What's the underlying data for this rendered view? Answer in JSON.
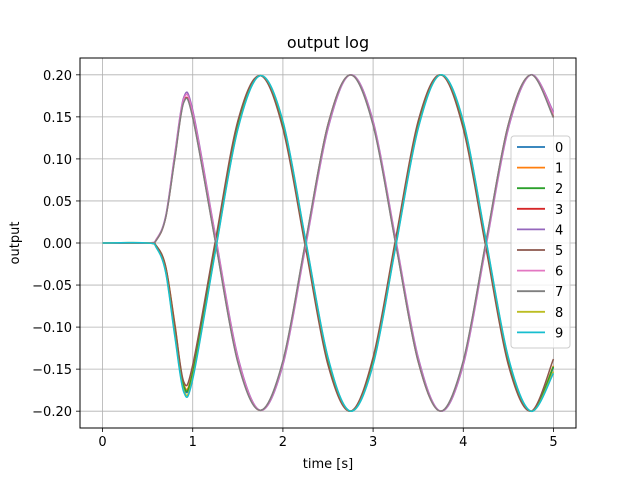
{
  "chart_data": {
    "type": "line",
    "title": "output log",
    "xlabel": "time [s]",
    "ylabel": "output",
    "xlim": [
      -0.25,
      5.25
    ],
    "ylim": [
      -0.22,
      0.22
    ],
    "xticks": [
      0,
      1,
      2,
      3,
      4,
      5
    ],
    "xtick_labels": [
      "0",
      "1",
      "2",
      "3",
      "4",
      "5"
    ],
    "yticks": [
      -0.2,
      -0.15,
      -0.1,
      -0.05,
      0.0,
      0.05,
      0.1,
      0.15,
      0.2
    ],
    "ytick_labels": [
      "−0.20",
      "−0.15",
      "−0.10",
      "−0.05",
      "0.00",
      "0.05",
      "0.10",
      "0.15",
      "0.20"
    ],
    "grid": true,
    "legend_position": "center-right",
    "series": [
      {
        "name": "0",
        "color": "#1f77b4",
        "x": [
          0,
          0.5,
          0.6,
          0.7,
          0.8,
          0.9,
          1.0,
          1.25,
          1.5,
          1.75,
          2.0,
          2.25,
          2.5,
          2.75,
          3.0,
          3.25,
          3.5,
          3.75,
          4.0,
          4.25,
          4.5,
          4.75,
          5.0
        ],
        "y": [
          0.0,
          0.0,
          -0.005,
          -0.03,
          -0.1,
          -0.172,
          -0.155,
          -0.005,
          0.14,
          0.199,
          0.14,
          0.0,
          -0.14,
          -0.2,
          -0.14,
          0.0,
          0.14,
          0.2,
          0.14,
          0.0,
          -0.14,
          -0.2,
          -0.148
        ]
      },
      {
        "name": "1",
        "color": "#ff7f0e",
        "x": [
          0,
          0.5,
          0.6,
          0.7,
          0.8,
          0.9,
          1.0,
          1.25,
          1.5,
          1.75,
          2.0,
          2.25,
          2.5,
          2.75,
          3.0,
          3.25,
          3.5,
          3.75,
          4.0,
          4.25,
          4.5,
          4.75,
          5.0
        ],
        "y": [
          0.0,
          0.0,
          -0.004,
          -0.028,
          -0.095,
          -0.168,
          -0.152,
          -0.004,
          0.14,
          0.199,
          0.141,
          0.0,
          -0.141,
          -0.2,
          -0.141,
          0.0,
          0.141,
          0.2,
          0.141,
          0.0,
          -0.141,
          -0.2,
          -0.146
        ]
      },
      {
        "name": "2",
        "color": "#2ca02c",
        "x": [
          0,
          0.5,
          0.6,
          0.7,
          0.8,
          0.9,
          1.0,
          1.25,
          1.5,
          1.75,
          2.0,
          2.25,
          2.5,
          2.75,
          3.0,
          3.25,
          3.5,
          3.75,
          4.0,
          4.25,
          4.5,
          4.75,
          5.0
        ],
        "y": [
          0.0,
          0.0,
          -0.004,
          -0.029,
          -0.098,
          -0.17,
          -0.154,
          -0.005,
          0.14,
          0.199,
          0.14,
          0.0,
          -0.14,
          -0.2,
          -0.14,
          0.0,
          0.14,
          0.2,
          0.14,
          0.0,
          -0.14,
          -0.2,
          -0.147
        ]
      },
      {
        "name": "3",
        "color": "#d62728",
        "x": [
          0,
          0.5,
          0.6,
          0.7,
          0.8,
          0.9,
          1.0,
          1.25,
          1.5,
          1.75,
          2.0,
          2.25,
          2.5,
          2.75,
          3.0,
          3.25,
          3.5,
          3.75,
          4.0,
          4.25,
          4.5,
          4.75,
          5.0
        ],
        "y": [
          0.0,
          0.0,
          0.004,
          0.03,
          0.1,
          0.168,
          0.15,
          0.003,
          -0.141,
          -0.199,
          -0.141,
          0.0,
          0.141,
          0.2,
          0.141,
          0.0,
          -0.141,
          -0.2,
          -0.141,
          0.0,
          0.141,
          0.2,
          0.15
        ]
      },
      {
        "name": "4",
        "color": "#9467bd",
        "x": [
          0,
          0.5,
          0.6,
          0.7,
          0.8,
          0.9,
          1.0,
          1.25,
          1.5,
          1.75,
          2.0,
          2.25,
          2.5,
          2.75,
          3.0,
          3.25,
          3.5,
          3.75,
          4.0,
          4.25,
          4.5,
          4.75,
          5.0
        ],
        "y": [
          0.0,
          0.0,
          0.005,
          0.032,
          0.105,
          0.173,
          0.158,
          0.01,
          -0.135,
          -0.199,
          -0.145,
          -0.005,
          0.136,
          0.2,
          0.145,
          0.005,
          -0.136,
          -0.2,
          -0.145,
          -0.005,
          0.136,
          0.2,
          0.156
        ]
      },
      {
        "name": "5",
        "color": "#8c564b",
        "x": [
          0,
          0.5,
          0.6,
          0.7,
          0.8,
          0.9,
          1.0,
          1.25,
          1.5,
          1.75,
          2.0,
          2.25,
          2.5,
          2.75,
          3.0,
          3.25,
          3.5,
          3.75,
          4.0,
          4.25,
          4.5,
          4.75,
          5.0
        ],
        "y": [
          0.0,
          0.0,
          -0.004,
          -0.028,
          -0.096,
          -0.165,
          -0.145,
          0.002,
          0.145,
          0.199,
          0.136,
          -0.005,
          -0.145,
          -0.2,
          -0.136,
          0.005,
          0.145,
          0.2,
          0.136,
          -0.005,
          -0.145,
          -0.2,
          -0.138
        ]
      },
      {
        "name": "6",
        "color": "#e377c2",
        "x": [
          0,
          0.5,
          0.6,
          0.7,
          0.8,
          0.9,
          1.0,
          1.25,
          1.5,
          1.75,
          2.0,
          2.25,
          2.5,
          2.75,
          3.0,
          3.25,
          3.5,
          3.75,
          4.0,
          4.25,
          4.5,
          4.75,
          5.0
        ],
        "y": [
          0.0,
          0.0,
          0.005,
          0.031,
          0.103,
          0.171,
          0.155,
          0.008,
          -0.137,
          -0.199,
          -0.143,
          -0.003,
          0.138,
          0.2,
          0.143,
          0.003,
          -0.138,
          -0.2,
          -0.143,
          -0.003,
          0.138,
          0.2,
          0.154
        ]
      },
      {
        "name": "7",
        "color": "#7f7f7f",
        "x": [
          0,
          0.5,
          0.6,
          0.7,
          0.8,
          0.9,
          1.0,
          1.25,
          1.5,
          1.75,
          2.0,
          2.25,
          2.5,
          2.75,
          3.0,
          3.25,
          3.5,
          3.75,
          4.0,
          4.25,
          4.5,
          4.75,
          5.0
        ],
        "y": [
          0.0,
          0.0,
          0.004,
          0.03,
          0.099,
          0.167,
          0.149,
          0.002,
          -0.142,
          -0.199,
          -0.14,
          0.001,
          0.141,
          0.2,
          0.14,
          -0.001,
          -0.141,
          -0.2,
          -0.14,
          0.001,
          0.141,
          0.2,
          0.149
        ]
      },
      {
        "name": "8",
        "color": "#bcbd22",
        "x": [
          0,
          0.5,
          0.6,
          0.7,
          0.8,
          0.9,
          1.0,
          1.25,
          1.5,
          1.75,
          2.0,
          2.25,
          2.5,
          2.75,
          3.0,
          3.25,
          3.5,
          3.75,
          4.0,
          4.25,
          4.5,
          4.75,
          5.0
        ],
        "y": [
          0.0,
          0.0,
          -0.006,
          -0.034,
          -0.108,
          -0.175,
          -0.16,
          -0.01,
          0.136,
          0.199,
          0.144,
          0.004,
          -0.137,
          -0.2,
          -0.144,
          -0.004,
          0.137,
          0.2,
          0.144,
          0.004,
          -0.137,
          -0.2,
          -0.153
        ]
      },
      {
        "name": "9",
        "color": "#17becf",
        "x": [
          0,
          0.5,
          0.6,
          0.7,
          0.8,
          0.9,
          1.0,
          1.25,
          1.5,
          1.75,
          2.0,
          2.25,
          2.5,
          2.75,
          3.0,
          3.25,
          3.5,
          3.75,
          4.0,
          4.25,
          4.5,
          4.75,
          5.0
        ],
        "y": [
          0.0,
          0.0,
          -0.006,
          -0.035,
          -0.11,
          -0.177,
          -0.162,
          -0.011,
          0.135,
          0.199,
          0.145,
          0.005,
          -0.136,
          -0.2,
          -0.145,
          -0.005,
          0.136,
          0.2,
          0.145,
          0.005,
          -0.136,
          -0.2,
          -0.155
        ]
      }
    ]
  }
}
